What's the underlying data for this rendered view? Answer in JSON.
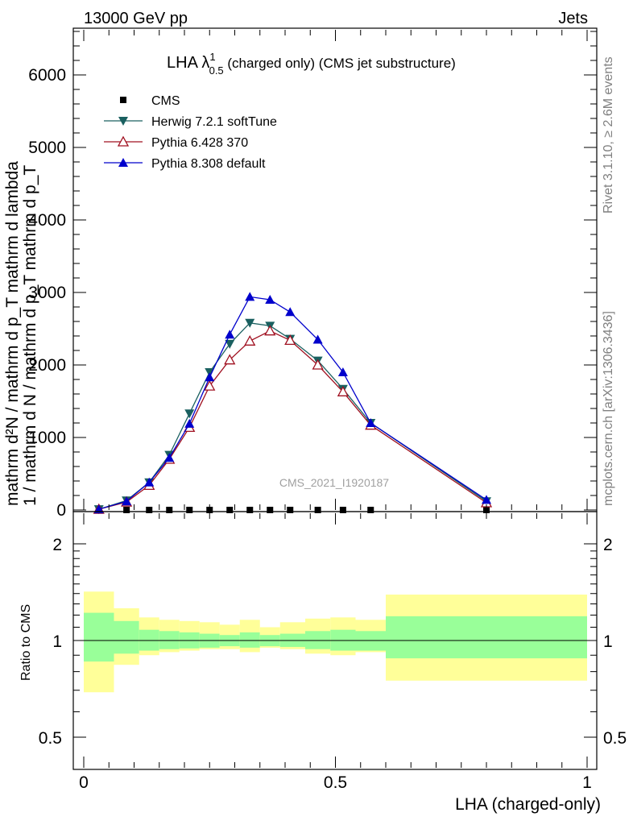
{
  "header": {
    "left": "13000 GeV pp",
    "right": "Jets"
  },
  "side": {
    "rivet": "Rivet 3.1.10, ≥ 2.6M events",
    "mcplots": "mcplots.cern.ch [arXiv:1306.3436]"
  },
  "watermark": "CMS_2021_I1920187",
  "plot_title": {
    "prefix": "LHA λ",
    "sup": "1",
    "sub": "0.5",
    "suffix": " (charged only) (CMS jet substructure)"
  },
  "axes": {
    "xlabel": "LHA (charged-only)",
    "ylabel_top_numerator": "mathrm d²N",
    "ylabel_top_denominator": "mathrm d p_T mathrm d lambda",
    "ylabel_bottom_numerator": "1",
    "ylabel_bottom_denominator": "mathrm d N / mathrm d p_T mathrm d p_T mathrm d p_T",
    "ylabel_full_top": "mathrm d²N / mathrm d p_T mathrm d lambda",
    "ylabel_full_bottom": "1 / mathrm d N / mathrm d p_T mathrm d p_T",
    "ratio_ylabel": "Ratio to CMS",
    "x_ticks": [
      "0",
      "0.5",
      "1"
    ],
    "y_ticks": [
      "0",
      "1000",
      "2000",
      "3000",
      "4000",
      "5000",
      "6000"
    ],
    "ratio_ticks": [
      "0.5",
      "1",
      "2"
    ]
  },
  "legend": [
    {
      "label": "CMS",
      "marker": "square",
      "color": "#000000"
    },
    {
      "label": "Herwig 7.2.1 softTune",
      "marker": "triangle-down",
      "color": "#1a6060"
    },
    {
      "label": "Pythia 6.428 370",
      "marker": "triangle-open",
      "color": "#a01020"
    },
    {
      "label": "Pythia 8.308 default",
      "marker": "triangle-up",
      "color": "#0000cc"
    }
  ],
  "chart_data": {
    "type": "line",
    "xlim": [
      0,
      1
    ],
    "ylim": [
      0,
      6600
    ],
    "ratio_ylim": [
      0.32,
      2.3
    ],
    "log_ratio": true,
    "grid": false,
    "legend_position": "top-left",
    "x": [
      0.03,
      0.085,
      0.13,
      0.17,
      0.21,
      0.25,
      0.29,
      0.33,
      0.37,
      0.41,
      0.465,
      0.515,
      0.57,
      0.8
    ],
    "bin_edges": [
      0,
      0.06,
      0.11,
      0.15,
      0.19,
      0.23,
      0.27,
      0.31,
      0.35,
      0.39,
      0.44,
      0.49,
      0.54,
      0.6,
      1.0
    ],
    "series": [
      {
        "name": "CMS",
        "color": "#000000",
        "marker": "square",
        "values": [
          0,
          0,
          0,
          0,
          0,
          0,
          0,
          0,
          0,
          0,
          0,
          0,
          0,
          0
        ]
      },
      {
        "name": "Herwig 7.2.1 softTune",
        "color": "#1a6060",
        "marker": "triangle-down",
        "values": [
          10,
          130,
          380,
          760,
          1330,
          1900,
          2290,
          2580,
          2540,
          2360,
          2060,
          1670,
          1200,
          120
        ]
      },
      {
        "name": "Pythia 6.428 370",
        "color": "#a01020",
        "marker": "triangle-open",
        "values": [
          10,
          110,
          340,
          700,
          1140,
          1710,
          2070,
          2330,
          2470,
          2340,
          2000,
          1630,
          1170,
          100
        ]
      },
      {
        "name": "Pythia 8.308 default",
        "color": "#0000cc",
        "marker": "triangle-up",
        "values": [
          10,
          120,
          380,
          720,
          1190,
          1830,
          2420,
          2940,
          2900,
          2730,
          2350,
          1900,
          1200,
          140
        ]
      }
    ],
    "ratio_band": {
      "inner_up": [
        1.22,
        1.15,
        1.08,
        1.07,
        1.06,
        1.05,
        1.04,
        1.06,
        1.04,
        1.05,
        1.07,
        1.08,
        1.07,
        1.19
      ],
      "inner_down": [
        0.86,
        0.91,
        0.93,
        0.94,
        0.945,
        0.95,
        0.96,
        0.95,
        0.96,
        0.955,
        0.94,
        0.93,
        0.93,
        0.88
      ],
      "outer_up": [
        1.42,
        1.26,
        1.18,
        1.16,
        1.15,
        1.14,
        1.12,
        1.16,
        1.1,
        1.14,
        1.17,
        1.18,
        1.16,
        1.39
      ],
      "outer_down": [
        0.69,
        0.84,
        0.9,
        0.92,
        0.93,
        0.94,
        0.94,
        0.92,
        0.95,
        0.94,
        0.91,
        0.9,
        0.92,
        0.75
      ]
    }
  },
  "colors": {
    "band_inner": "#99ff99",
    "band_outer": "#ffff99"
  }
}
